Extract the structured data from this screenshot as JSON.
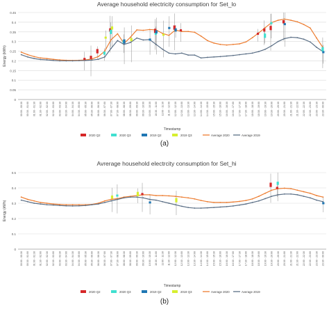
{
  "figure": {
    "panel_a_label": "(a)",
    "panel_b_label": "(b)"
  },
  "colors": {
    "q2_2020": "#d62728",
    "q3_2020": "#40e0d0",
    "q2_2019": "#1f77b4",
    "q3_2019": "#d7ef2f",
    "avg_2020": "#ed7d31",
    "avg_2019": "#5b6f86",
    "grid": "#d9d9d9",
    "axis": "#7f7f7f",
    "whisker": "#8c8c8c"
  },
  "chart_data": [
    {
      "type": "line",
      "title": "Average household electricity consumption for Set_lo",
      "xlabel": "Timestamp",
      "ylabel": "Energy (kWh)",
      "ylim": [
        0,
        0.45
      ],
      "yticks": [
        "0",
        "0.05",
        "0.1",
        "0.15",
        "0.2",
        "0.25",
        "0.3",
        "0.35",
        "0.4",
        "0.45"
      ],
      "grid": true,
      "legend_placement": "bottom",
      "legend": [
        "2020 Q2",
        "2020 Q3",
        "2019 Q2",
        "2019 Q3",
        "Average 2020",
        "Average 2019"
      ],
      "categories": [
        "00:00 - 00:30",
        "00:30 - 01:00",
        "01:00 - 01:30",
        "01:30 - 02:00",
        "02:00 - 02:30",
        "02:30 - 03:00",
        "03:00 - 03:30",
        "03:30 - 04:00",
        "04:00 - 04:30",
        "04:30 - 05:00",
        "05:00 - 05:30",
        "05:30 - 06:00",
        "06:00 - 06:30",
        "06:30 - 07:00",
        "07:00 - 07:30",
        "07:30 - 08:00",
        "08:00 - 08:30",
        "08:30 - 09:00",
        "09:00 - 09:30",
        "09:30 - 10:00",
        "10:00 - 10:30",
        "10:30 - 11:00",
        "11:00 - 11:30",
        "11:30 - 12:00",
        "12:00 - 12:30",
        "12:30 - 13:00",
        "13:00 - 13:30",
        "13:30 - 14:00",
        "14:00 - 14:30",
        "14:30 - 15:00",
        "15:00 - 15:30",
        "15:30 - 16:00",
        "16:00 - 16:30",
        "16:30 - 17:00",
        "17:00 - 17:30",
        "17:30 - 18:00",
        "18:00 - 18:30",
        "18:30 - 19:00",
        "19:00 - 19:30",
        "19:30 - 20:00",
        "20:00 - 20:30",
        "20:30 - 21:00",
        "21:00 - 21:30",
        "21:30 - 22:00",
        "22:00 - 22:30",
        "22:30 - 23:00",
        "23:00 - 23:30",
        "23:30 - 00:00"
      ],
      "series": [
        {
          "name": "Average 2020",
          "values": [
            0.245,
            0.232,
            0.222,
            0.215,
            0.212,
            0.208,
            0.205,
            0.203,
            0.202,
            0.203,
            0.205,
            0.21,
            0.222,
            0.25,
            0.31,
            0.34,
            0.29,
            0.322,
            0.36,
            0.358,
            0.362,
            0.36,
            0.342,
            0.332,
            0.36,
            0.352,
            0.352,
            0.348,
            0.328,
            0.305,
            0.292,
            0.285,
            0.282,
            0.285,
            0.288,
            0.298,
            0.32,
            0.345,
            0.372,
            0.398,
            0.41,
            0.416,
            0.41,
            0.402,
            0.388,
            0.37,
            0.318,
            0.268
          ]
        },
        {
          "name": "Average 2019",
          "values": [
            0.232,
            0.22,
            0.212,
            0.207,
            0.205,
            0.202,
            0.2,
            0.2,
            0.2,
            0.201,
            0.202,
            0.204,
            0.208,
            0.22,
            0.265,
            0.305,
            0.285,
            0.295,
            0.318,
            0.308,
            0.31,
            0.285,
            0.26,
            0.24,
            0.236,
            0.24,
            0.23,
            0.23,
            0.215,
            0.218,
            0.22,
            0.222,
            0.225,
            0.228,
            0.232,
            0.236,
            0.24,
            0.248,
            0.26,
            0.278,
            0.3,
            0.315,
            0.322,
            0.32,
            0.312,
            0.298,
            0.27,
            0.248
          ]
        },
        {
          "name": "2020 Q2",
          "values": [
            null,
            null,
            null,
            null,
            null,
            null,
            null,
            null,
            null,
            null,
            0.21,
            0.218,
            0.25,
            null,
            0.36,
            null,
            null,
            null,
            null,
            null,
            null,
            0.355,
            null,
            null,
            0.372,
            0.358,
            null,
            null,
            null,
            null,
            null,
            null,
            null,
            null,
            null,
            null,
            null,
            0.34,
            0.36,
            0.37,
            null,
            0.402,
            null,
            null,
            null,
            null,
            null,
            null
          ]
        },
        {
          "name": "2020 Q3",
          "values": [
            null,
            null,
            null,
            null,
            null,
            null,
            null,
            null,
            null,
            null,
            null,
            null,
            null,
            0.24,
            0.35,
            null,
            0.3,
            null,
            null,
            null,
            null,
            0.34,
            null,
            null,
            null,
            null,
            null,
            null,
            null,
            null,
            null,
            null,
            null,
            null,
            null,
            null,
            null,
            null,
            0.33,
            0.395,
            null,
            null,
            null,
            null,
            null,
            null,
            null,
            0.26
          ]
        },
        {
          "name": "2019 Q2",
          "values": [
            null,
            null,
            null,
            null,
            null,
            null,
            null,
            null,
            null,
            null,
            null,
            null,
            null,
            null,
            null,
            null,
            0.3,
            null,
            null,
            null,
            0.31,
            0.35,
            null,
            0.37,
            0.36,
            null,
            null,
            null,
            null,
            null,
            null,
            null,
            null,
            null,
            null,
            null,
            null,
            null,
            null,
            null,
            null,
            0.39,
            null,
            null,
            null,
            null,
            null,
            0.245
          ]
        },
        {
          "name": "2019 Q3",
          "values": [
            null,
            null,
            null,
            null,
            null,
            null,
            null,
            null,
            null,
            null,
            null,
            null,
            null,
            0.32,
            0.37,
            null,
            null,
            0.31,
            null,
            null,
            null,
            null,
            0.335,
            null,
            null,
            null,
            null,
            null,
            null,
            null,
            null,
            null,
            null,
            null,
            null,
            null,
            null,
            null,
            null,
            null,
            null,
            null,
            null,
            null,
            null,
            null,
            null,
            null
          ]
        }
      ]
    },
    {
      "type": "line",
      "title": "Avrerage household electrcity consumption for Set_hi",
      "xlabel": "Timestamp",
      "ylabel": "Energy (kWh)",
      "ylim": [
        0,
        0.5
      ],
      "yticks": [
        "0",
        "0.1",
        "0.2",
        "0.3",
        "0.4",
        "0.5"
      ],
      "grid": true,
      "legend_placement": "bottom",
      "legend": [
        "2020 Q2",
        "2020 Q3",
        "2019 Q2",
        "2019 Q3",
        "Average 2020",
        "Average 2019"
      ],
      "categories": [
        "00:00 - 00:30",
        "00:30 - 01:00",
        "01:00 - 01:30",
        "01:30 - 02:00",
        "02:00 - 02:30",
        "02:30 - 03:00",
        "03:00 - 03:30",
        "03:30 - 04:00",
        "04:00 - 04:30",
        "04:30 - 05:00",
        "05:00 - 05:30",
        "05:30 - 06:00",
        "06:00 - 06:30",
        "06:30 - 07:00",
        "07:00 - 07:30",
        "07:30 - 08:00",
        "08:00 - 08:30",
        "08:30 - 09:00",
        "09:00 - 09:30",
        "09:30 - 10:00",
        "10:00 - 10:30",
        "10:30 - 11:00",
        "11:00 - 11:30",
        "11:30 - 12:00",
        "12:00 - 12:30",
        "12:30 - 13:00",
        "13:00 - 13:30",
        "13:30 - 14:00",
        "14:00 - 14:30",
        "14:30 - 15:00",
        "15:00 - 15:30",
        "15:30 - 16:00",
        "16:00 - 16:30",
        "16:30 - 17:00",
        "17:00 - 17:30",
        "17:30 - 18:00",
        "18:00 - 18:30",
        "18:30 - 19:00",
        "19:00 - 19:30",
        "19:30 - 20:00",
        "20:00 - 20:30",
        "20:30 - 21:00",
        "21:00 - 21:30",
        "21:30 - 22:00",
        "22:00 - 22:30",
        "22:30 - 23:00",
        "23:00 - 23:30",
        "23:30 - 00:00"
      ],
      "series": [
        {
          "name": "Average 2020",
          "values": [
            0.34,
            0.325,
            0.315,
            0.305,
            0.3,
            0.295,
            0.292,
            0.29,
            0.29,
            0.29,
            0.29,
            0.292,
            0.3,
            0.315,
            0.325,
            0.33,
            0.34,
            0.345,
            0.35,
            0.355,
            0.355,
            0.35,
            0.35,
            0.348,
            0.345,
            0.34,
            0.335,
            0.328,
            0.318,
            0.31,
            0.305,
            0.305,
            0.305,
            0.308,
            0.312,
            0.318,
            0.328,
            0.345,
            0.365,
            0.385,
            0.395,
            0.398,
            0.395,
            0.385,
            0.375,
            0.365,
            0.35,
            0.34
          ]
        },
        {
          "name": "Average 2019",
          "values": [
            0.32,
            0.31,
            0.3,
            0.295,
            0.29,
            0.288,
            0.285,
            0.283,
            0.282,
            0.283,
            0.285,
            0.29,
            0.295,
            0.305,
            0.315,
            0.325,
            0.335,
            0.34,
            0.34,
            0.335,
            0.325,
            0.32,
            0.31,
            0.3,
            0.29,
            0.28,
            0.272,
            0.268,
            0.268,
            0.27,
            0.272,
            0.275,
            0.278,
            0.282,
            0.288,
            0.295,
            0.305,
            0.315,
            0.33,
            0.345,
            0.355,
            0.36,
            0.36,
            0.355,
            0.345,
            0.335,
            0.32,
            0.31
          ]
        },
        {
          "name": "2020 Q2",
          "values": [
            null,
            null,
            null,
            null,
            null,
            null,
            null,
            null,
            null,
            null,
            null,
            null,
            null,
            null,
            null,
            null,
            null,
            null,
            null,
            0.36,
            null,
            null,
            null,
            null,
            null,
            null,
            null,
            null,
            null,
            null,
            null,
            null,
            null,
            null,
            null,
            null,
            null,
            null,
            null,
            0.42,
            0.4,
            null,
            null,
            null,
            null,
            null,
            null,
            null
          ]
        },
        {
          "name": "2020 Q3",
          "values": [
            null,
            null,
            null,
            null,
            null,
            null,
            null,
            null,
            null,
            null,
            null,
            null,
            null,
            null,
            null,
            0.35,
            null,
            null,
            null,
            null,
            null,
            null,
            null,
            null,
            null,
            null,
            null,
            null,
            null,
            null,
            null,
            null,
            null,
            null,
            null,
            null,
            null,
            null,
            null,
            null,
            0.43,
            null,
            null,
            null,
            null,
            null,
            null,
            null
          ]
        },
        {
          "name": "2019 Q2",
          "values": [
            null,
            null,
            null,
            null,
            null,
            null,
            null,
            null,
            null,
            null,
            null,
            null,
            null,
            null,
            null,
            null,
            null,
            null,
            null,
            null,
            0.305,
            null,
            null,
            null,
            null,
            null,
            null,
            null,
            null,
            null,
            null,
            null,
            null,
            null,
            null,
            null,
            null,
            null,
            null,
            null,
            null,
            null,
            null,
            null,
            null,
            null,
            null,
            0.3
          ]
        },
        {
          "name": "2019 Q3",
          "values": [
            null,
            null,
            null,
            null,
            null,
            null,
            null,
            null,
            null,
            null,
            null,
            null,
            null,
            null,
            0.34,
            null,
            null,
            null,
            0.36,
            null,
            null,
            null,
            null,
            null,
            0.32,
            null,
            null,
            null,
            null,
            null,
            null,
            null,
            null,
            null,
            null,
            null,
            null,
            null,
            null,
            null,
            null,
            null,
            null,
            null,
            null,
            null,
            null,
            null
          ]
        }
      ]
    }
  ]
}
